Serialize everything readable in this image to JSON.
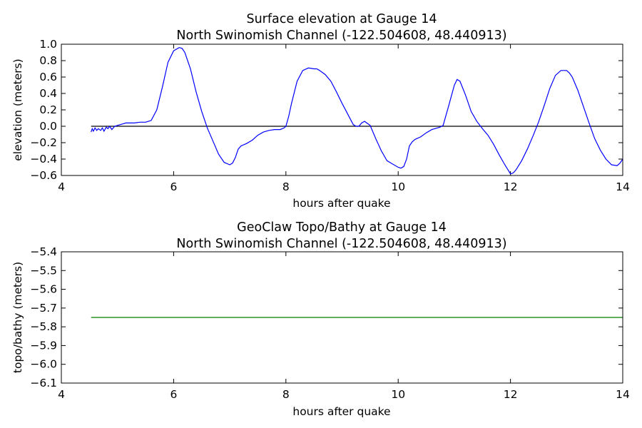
{
  "chart_data": [
    {
      "type": "line",
      "title_line1": "Surface elevation at Gauge 14",
      "title_line2": "North Swinomish Channel  (-122.504608, 48.440913)",
      "xlabel": "hours after quake",
      "ylabel": "elevation (meters)",
      "xlim": [
        4,
        14
      ],
      "ylim": [
        -0.6,
        1.0
      ],
      "xticks": [
        "4",
        "6",
        "8",
        "10",
        "12",
        "14"
      ],
      "yticks": [
        "1.0",
        "0.8",
        "0.6",
        "0.4",
        "0.2",
        "0.0",
        "−0.2",
        "−0.4",
        "−0.6"
      ],
      "grid": false,
      "reference_line": {
        "y": 0.0,
        "color": "#000000"
      },
      "series": [
        {
          "color": "#0000ff",
          "x": [
            4.53,
            4.55,
            4.57,
            4.6,
            4.63,
            4.66,
            4.7,
            4.73,
            4.76,
            4.8,
            4.83,
            4.86,
            4.9,
            4.95,
            5.0,
            5.05,
            5.1,
            5.15,
            5.2,
            5.3,
            5.4,
            5.5,
            5.6,
            5.7,
            5.8,
            5.9,
            6.0,
            6.1,
            6.15,
            6.2,
            6.3,
            6.4,
            6.5,
            6.6,
            6.7,
            6.8,
            6.9,
            7.0,
            7.05,
            7.1,
            7.15,
            7.2,
            7.3,
            7.4,
            7.5,
            7.6,
            7.7,
            7.8,
            7.9,
            7.97,
            8.0,
            8.05,
            8.1,
            8.2,
            8.3,
            8.4,
            8.5,
            8.55,
            8.6,
            8.7,
            8.8,
            8.9,
            9.0,
            9.1,
            9.2,
            9.25,
            9.3,
            9.35,
            9.4,
            9.5,
            9.6,
            9.7,
            9.8,
            9.9,
            10.0,
            10.05,
            10.1,
            10.15,
            10.2,
            10.25,
            10.3,
            10.4,
            10.5,
            10.6,
            10.7,
            10.75,
            10.8,
            10.9,
            11.0,
            11.05,
            11.1,
            11.2,
            11.3,
            11.4,
            11.5,
            11.6,
            11.7,
            11.8,
            11.9,
            12.0,
            12.05,
            12.1,
            12.2,
            12.3,
            12.4,
            12.5,
            12.6,
            12.7,
            12.8,
            12.9,
            13.0,
            13.05,
            13.1,
            13.2,
            13.3,
            13.4,
            13.5,
            13.6,
            13.7,
            13.8,
            13.9,
            13.95,
            14.0
          ],
          "y": [
            -0.07,
            -0.03,
            -0.06,
            -0.02,
            -0.05,
            -0.03,
            -0.05,
            -0.02,
            -0.06,
            -0.01,
            -0.03,
            0.0,
            -0.04,
            0.0,
            0.01,
            0.02,
            0.03,
            0.04,
            0.04,
            0.04,
            0.05,
            0.05,
            0.07,
            0.2,
            0.48,
            0.78,
            0.92,
            0.96,
            0.95,
            0.9,
            0.7,
            0.42,
            0.18,
            -0.02,
            -0.18,
            -0.34,
            -0.44,
            -0.47,
            -0.45,
            -0.38,
            -0.28,
            -0.24,
            -0.21,
            -0.17,
            -0.11,
            -0.07,
            -0.05,
            -0.04,
            -0.04,
            -0.02,
            0.0,
            0.12,
            0.28,
            0.55,
            0.68,
            0.71,
            0.7,
            0.7,
            0.68,
            0.63,
            0.55,
            0.42,
            0.28,
            0.15,
            0.02,
            0.0,
            0.0,
            0.04,
            0.06,
            0.01,
            -0.15,
            -0.3,
            -0.42,
            -0.46,
            -0.5,
            -0.51,
            -0.49,
            -0.4,
            -0.24,
            -0.19,
            -0.16,
            -0.13,
            -0.08,
            -0.04,
            -0.02,
            -0.01,
            0.01,
            0.25,
            0.5,
            0.57,
            0.55,
            0.38,
            0.18,
            0.06,
            -0.03,
            -0.11,
            -0.22,
            -0.35,
            -0.47,
            -0.58,
            -0.57,
            -0.53,
            -0.42,
            -0.28,
            -0.12,
            0.05,
            0.25,
            0.46,
            0.62,
            0.68,
            0.68,
            0.65,
            0.6,
            0.44,
            0.24,
            0.04,
            -0.15,
            -0.29,
            -0.4,
            -0.47,
            -0.48,
            -0.45,
            -0.4
          ]
        }
      ]
    },
    {
      "type": "line",
      "title_line1": "GeoClaw Topo/Bathy at Gauge 14",
      "title_line2": "North Swinomish Channel  (-122.504608, 48.440913)",
      "xlabel": "hours after quake",
      "ylabel": "topo/bathy (meters)",
      "xlim": [
        4,
        14
      ],
      "ylim": [
        -6.1,
        -5.4
      ],
      "xticks": [
        "4",
        "6",
        "8",
        "10",
        "12",
        "14"
      ],
      "yticks": [
        "−5.4",
        "−5.5",
        "−5.6",
        "−5.7",
        "−5.8",
        "−5.9",
        "−6.0",
        "−6.1"
      ],
      "grid": false,
      "series": [
        {
          "color": "#008000",
          "x": [
            4.53,
            14.0
          ],
          "y": [
            -5.75,
            -5.75
          ]
        }
      ]
    }
  ]
}
